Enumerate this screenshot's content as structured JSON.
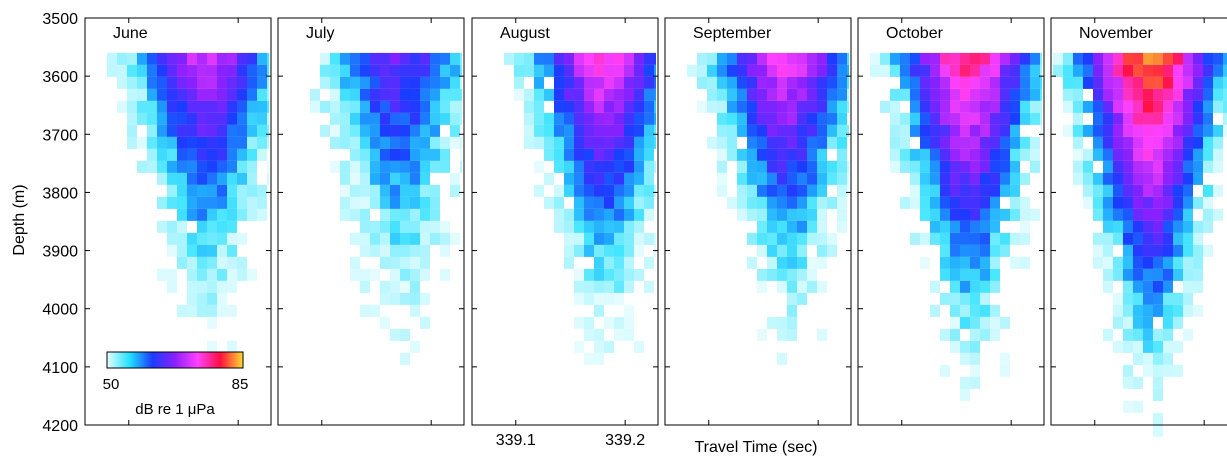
{
  "chart_data": {
    "type": "heatmap",
    "ylabel": "Depth (m)",
    "xlabel": "Travel Time (sec)",
    "ylim": [
      3500,
      4200
    ],
    "y_reversed": true,
    "yticks": [
      3500,
      3600,
      3700,
      3800,
      3900,
      4000,
      4100,
      4200
    ],
    "xlim": [
      339.06,
      339.23
    ],
    "xtick_labels": [
      {
        "value": 339.1,
        "label": "339.1"
      },
      {
        "value": 339.2,
        "label": "339.2"
      }
    ],
    "xtick_label_panel": "August",
    "colorbar": {
      "min": 50,
      "max": 85,
      "min_label": "50",
      "max_label": "85",
      "label": "dB re 1 μPa",
      "colormap": [
        "#e6ffff",
        "#22e0ff",
        "#1a3cff",
        "#8a20ff",
        "#ff40ff",
        "#ff1040",
        "#ffdc30"
      ]
    },
    "data_depth_range": [
      3560,
      4200
    ],
    "panels": [
      {
        "title": "June",
        "peak_time": 339.17,
        "peak_level": 71,
        "bottom_depth": 4070,
        "spread": 0.045
      },
      {
        "title": "July",
        "peak_time": 339.17,
        "peak_level": 66,
        "bottom_depth": 4090,
        "spread": 0.045
      },
      {
        "title": "August",
        "peak_time": 339.18,
        "peak_level": 74,
        "bottom_depth": 4090,
        "spread": 0.05
      },
      {
        "title": "September",
        "peak_time": 339.17,
        "peak_level": 73,
        "bottom_depth": 4080,
        "spread": 0.042
      },
      {
        "title": "October",
        "peak_time": 339.16,
        "peak_level": 77,
        "bottom_depth": 4160,
        "spread": 0.045
      },
      {
        "title": "November",
        "peak_time": 339.15,
        "peak_level": 83,
        "bottom_depth": 4200,
        "spread": 0.05
      }
    ]
  }
}
